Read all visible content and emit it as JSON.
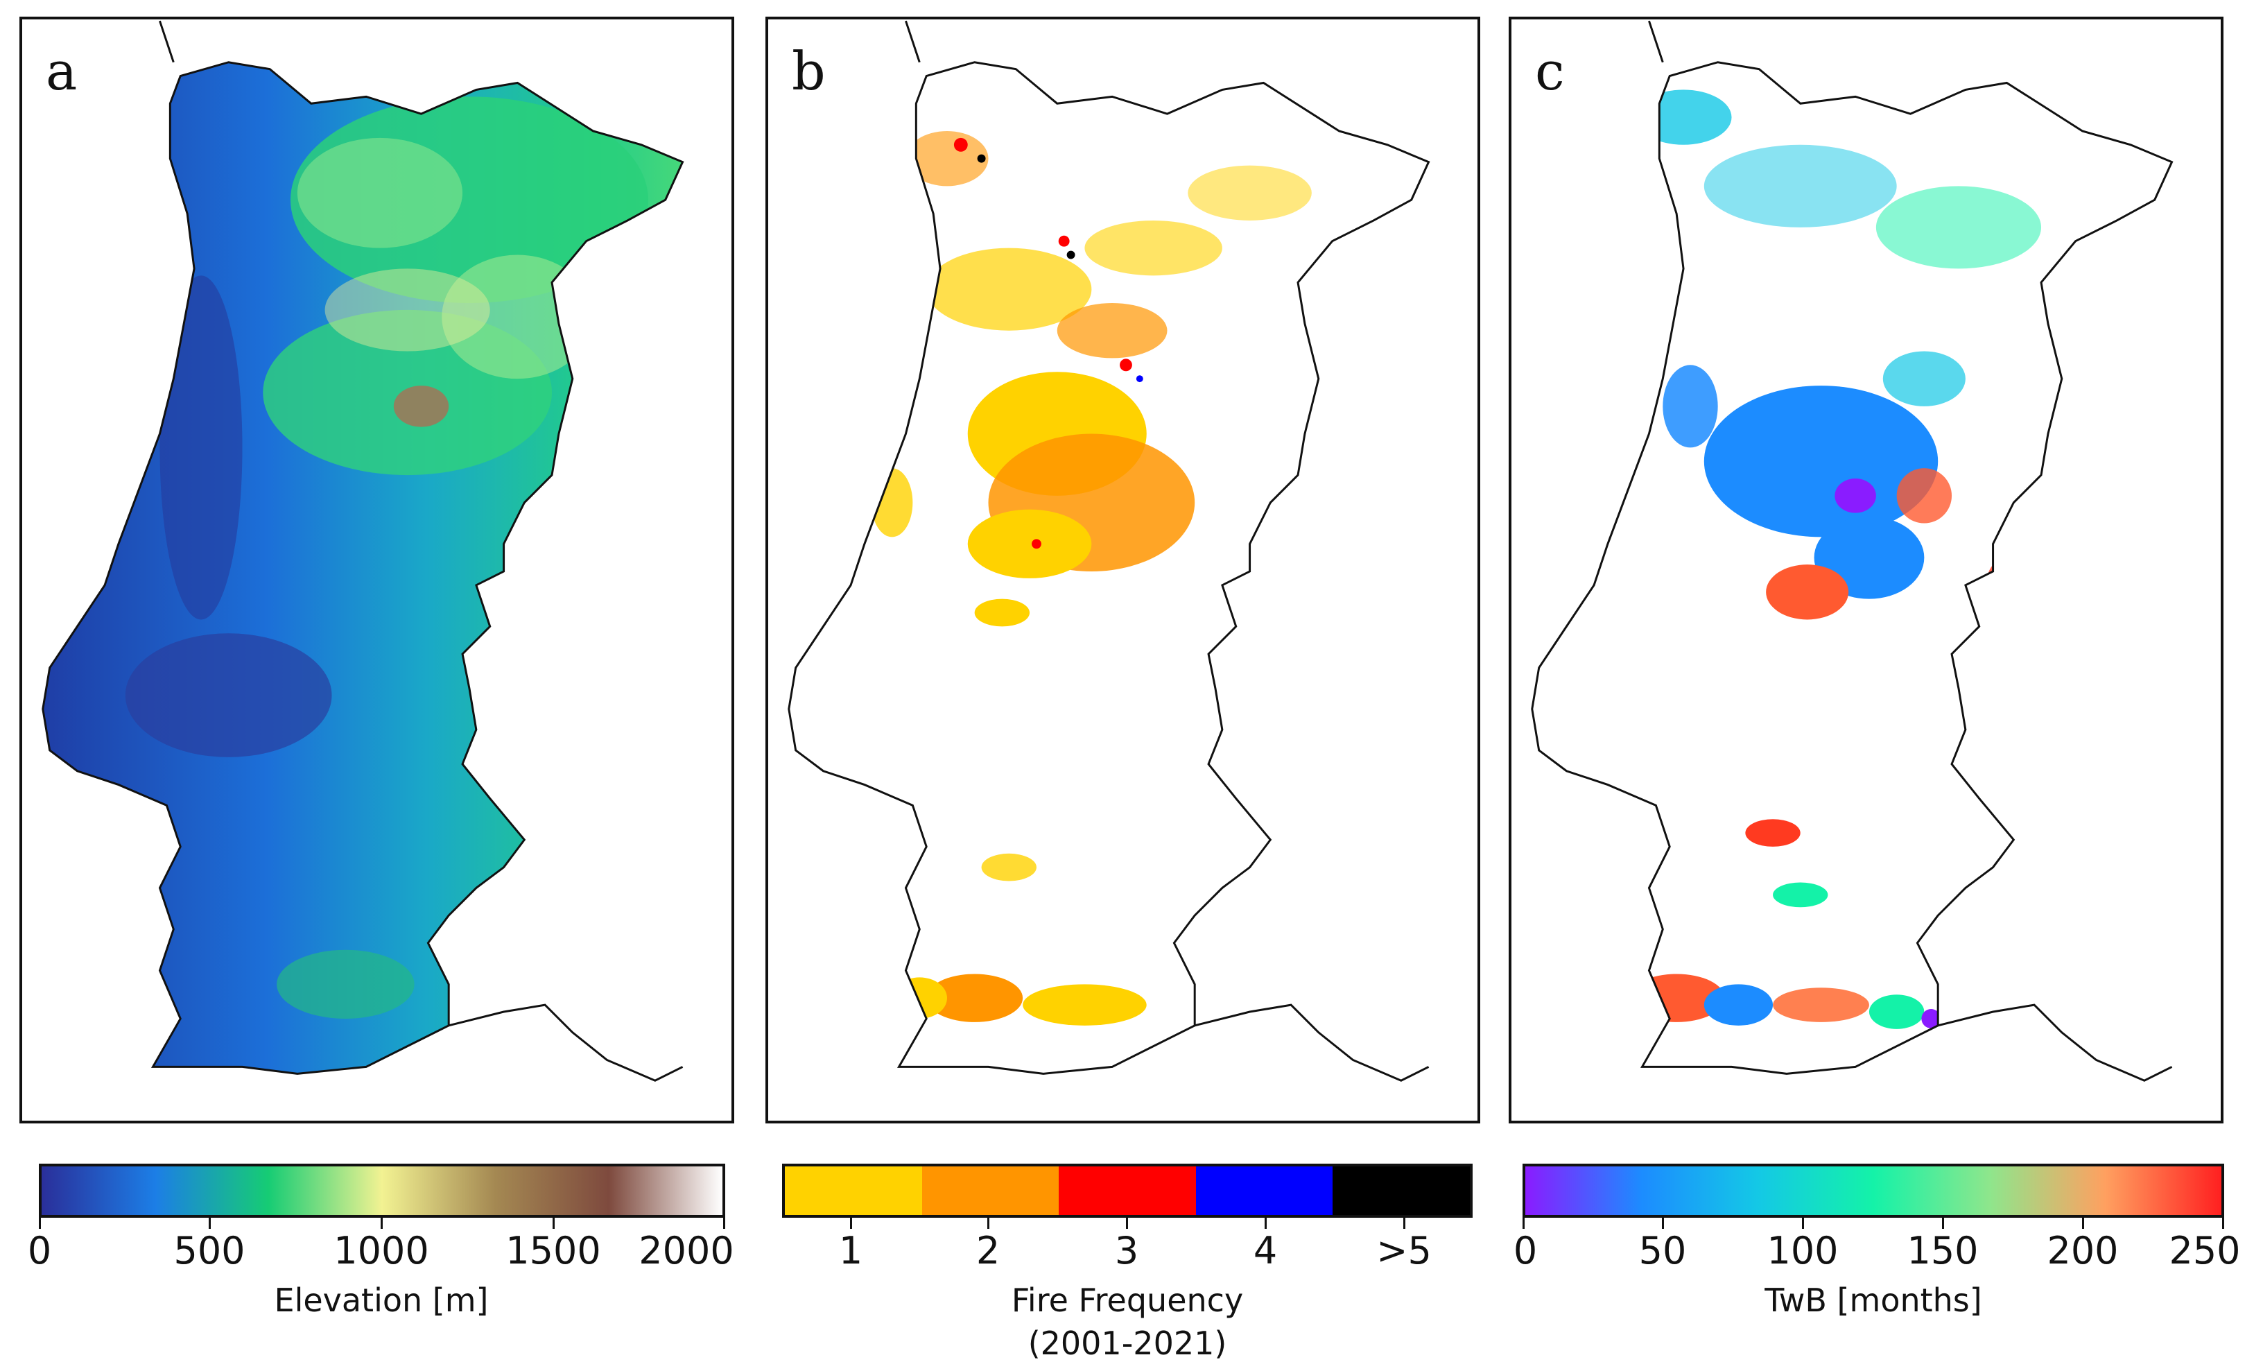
{
  "panels": [
    {
      "letter": "a",
      "layer": "Elevation"
    },
    {
      "letter": "b",
      "layer": "Fire Frequency"
    },
    {
      "letter": "c",
      "layer": "TwB"
    }
  ],
  "legend_a": {
    "title": "Elevation [m]",
    "ticks": [
      "0",
      "500",
      "1000",
      "1500",
      "2000"
    ],
    "range": [
      0,
      2000
    ],
    "colors": [
      "#2a2f9a",
      "#1c7ee6",
      "#16cc74",
      "#f2f292",
      "#a48852",
      "#7e4a3e",
      "#ffffff"
    ]
  },
  "legend_b": {
    "title_line1": "Fire Frequency",
    "title_line2": "(2001-2021)",
    "ticks": [
      "1",
      "2",
      "3",
      "4",
      ">5"
    ],
    "colors": [
      "#ffd200",
      "#ff9500",
      "#ff0000",
      "#0000ff",
      "#000000"
    ]
  },
  "legend_c": {
    "title": "TwB [months]",
    "ticks": [
      "0",
      "50",
      "100",
      "150",
      "200",
      "250"
    ],
    "range": [
      0,
      250
    ],
    "colors": [
      "#8a1cff",
      "#1c8cff",
      "#14c8e6",
      "#14f2a8",
      "#8ee68c",
      "#ffa060",
      "#ff2020"
    ]
  }
}
